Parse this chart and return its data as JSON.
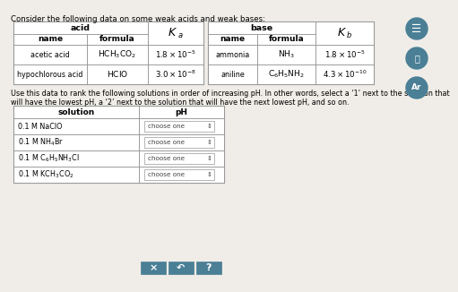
{
  "title": "Consider the following data on some weak acids and weak bases:",
  "bg_color": "#f0ede8",
  "acid_table": {
    "rows": [
      [
        "acetic acid",
        "HCH_3CO_2",
        "1.8 × 10^{-5}"
      ],
      [
        "hypochlorous acid",
        "HClO",
        "3.0 × 10^{-8}"
      ]
    ]
  },
  "base_table": {
    "rows": [
      [
        "ammonia",
        "NH_3",
        "1.8 × 10^{-5}"
      ],
      [
        "aniline",
        "C_6H_5NH_2",
        "4.3 × 10^{-10}"
      ]
    ]
  },
  "instruction1": "Use this data to rank the following solutions in order of increasing pH. In other words, select a ‘1’ next to the solution that",
  "instruction2": "will have the lowest pH, a ‘2’ next to the solution that will have the next lowest pH, and so on.",
  "solution_rows": [
    "0.1 M NaClO",
    "0.1 M NH_4Br",
    "0.1 M C_6H_5NH_3Cl",
    "0.1 M KCH_3CO_2"
  ],
  "button_color": "#4a7f96",
  "icon_color": "#4a7f96"
}
